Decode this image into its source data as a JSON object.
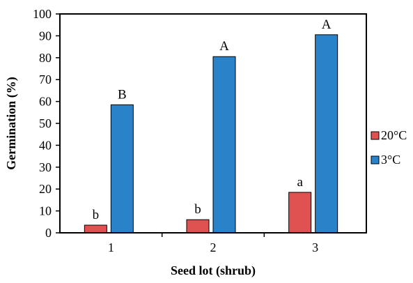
{
  "chart_data": {
    "type": "bar",
    "title": "",
    "xlabel": "Seed lot (shrub)",
    "ylabel": "Germination (%)",
    "ylim": [
      0,
      100
    ],
    "yticks": [
      0,
      10,
      20,
      30,
      40,
      50,
      60,
      70,
      80,
      90,
      100
    ],
    "categories": [
      "1",
      "2",
      "3"
    ],
    "series": [
      {
        "name": "20°C",
        "values": [
          3.5,
          6,
          18.5
        ],
        "labels": [
          "b",
          "b",
          "a"
        ],
        "color": "#e05252"
      },
      {
        "name": "3°C",
        "values": [
          58.5,
          80.5,
          90.5
        ],
        "labels": [
          "B",
          "A",
          "A"
        ],
        "color": "#2a82c9"
      }
    ],
    "grid": false,
    "legend_position": "right"
  }
}
